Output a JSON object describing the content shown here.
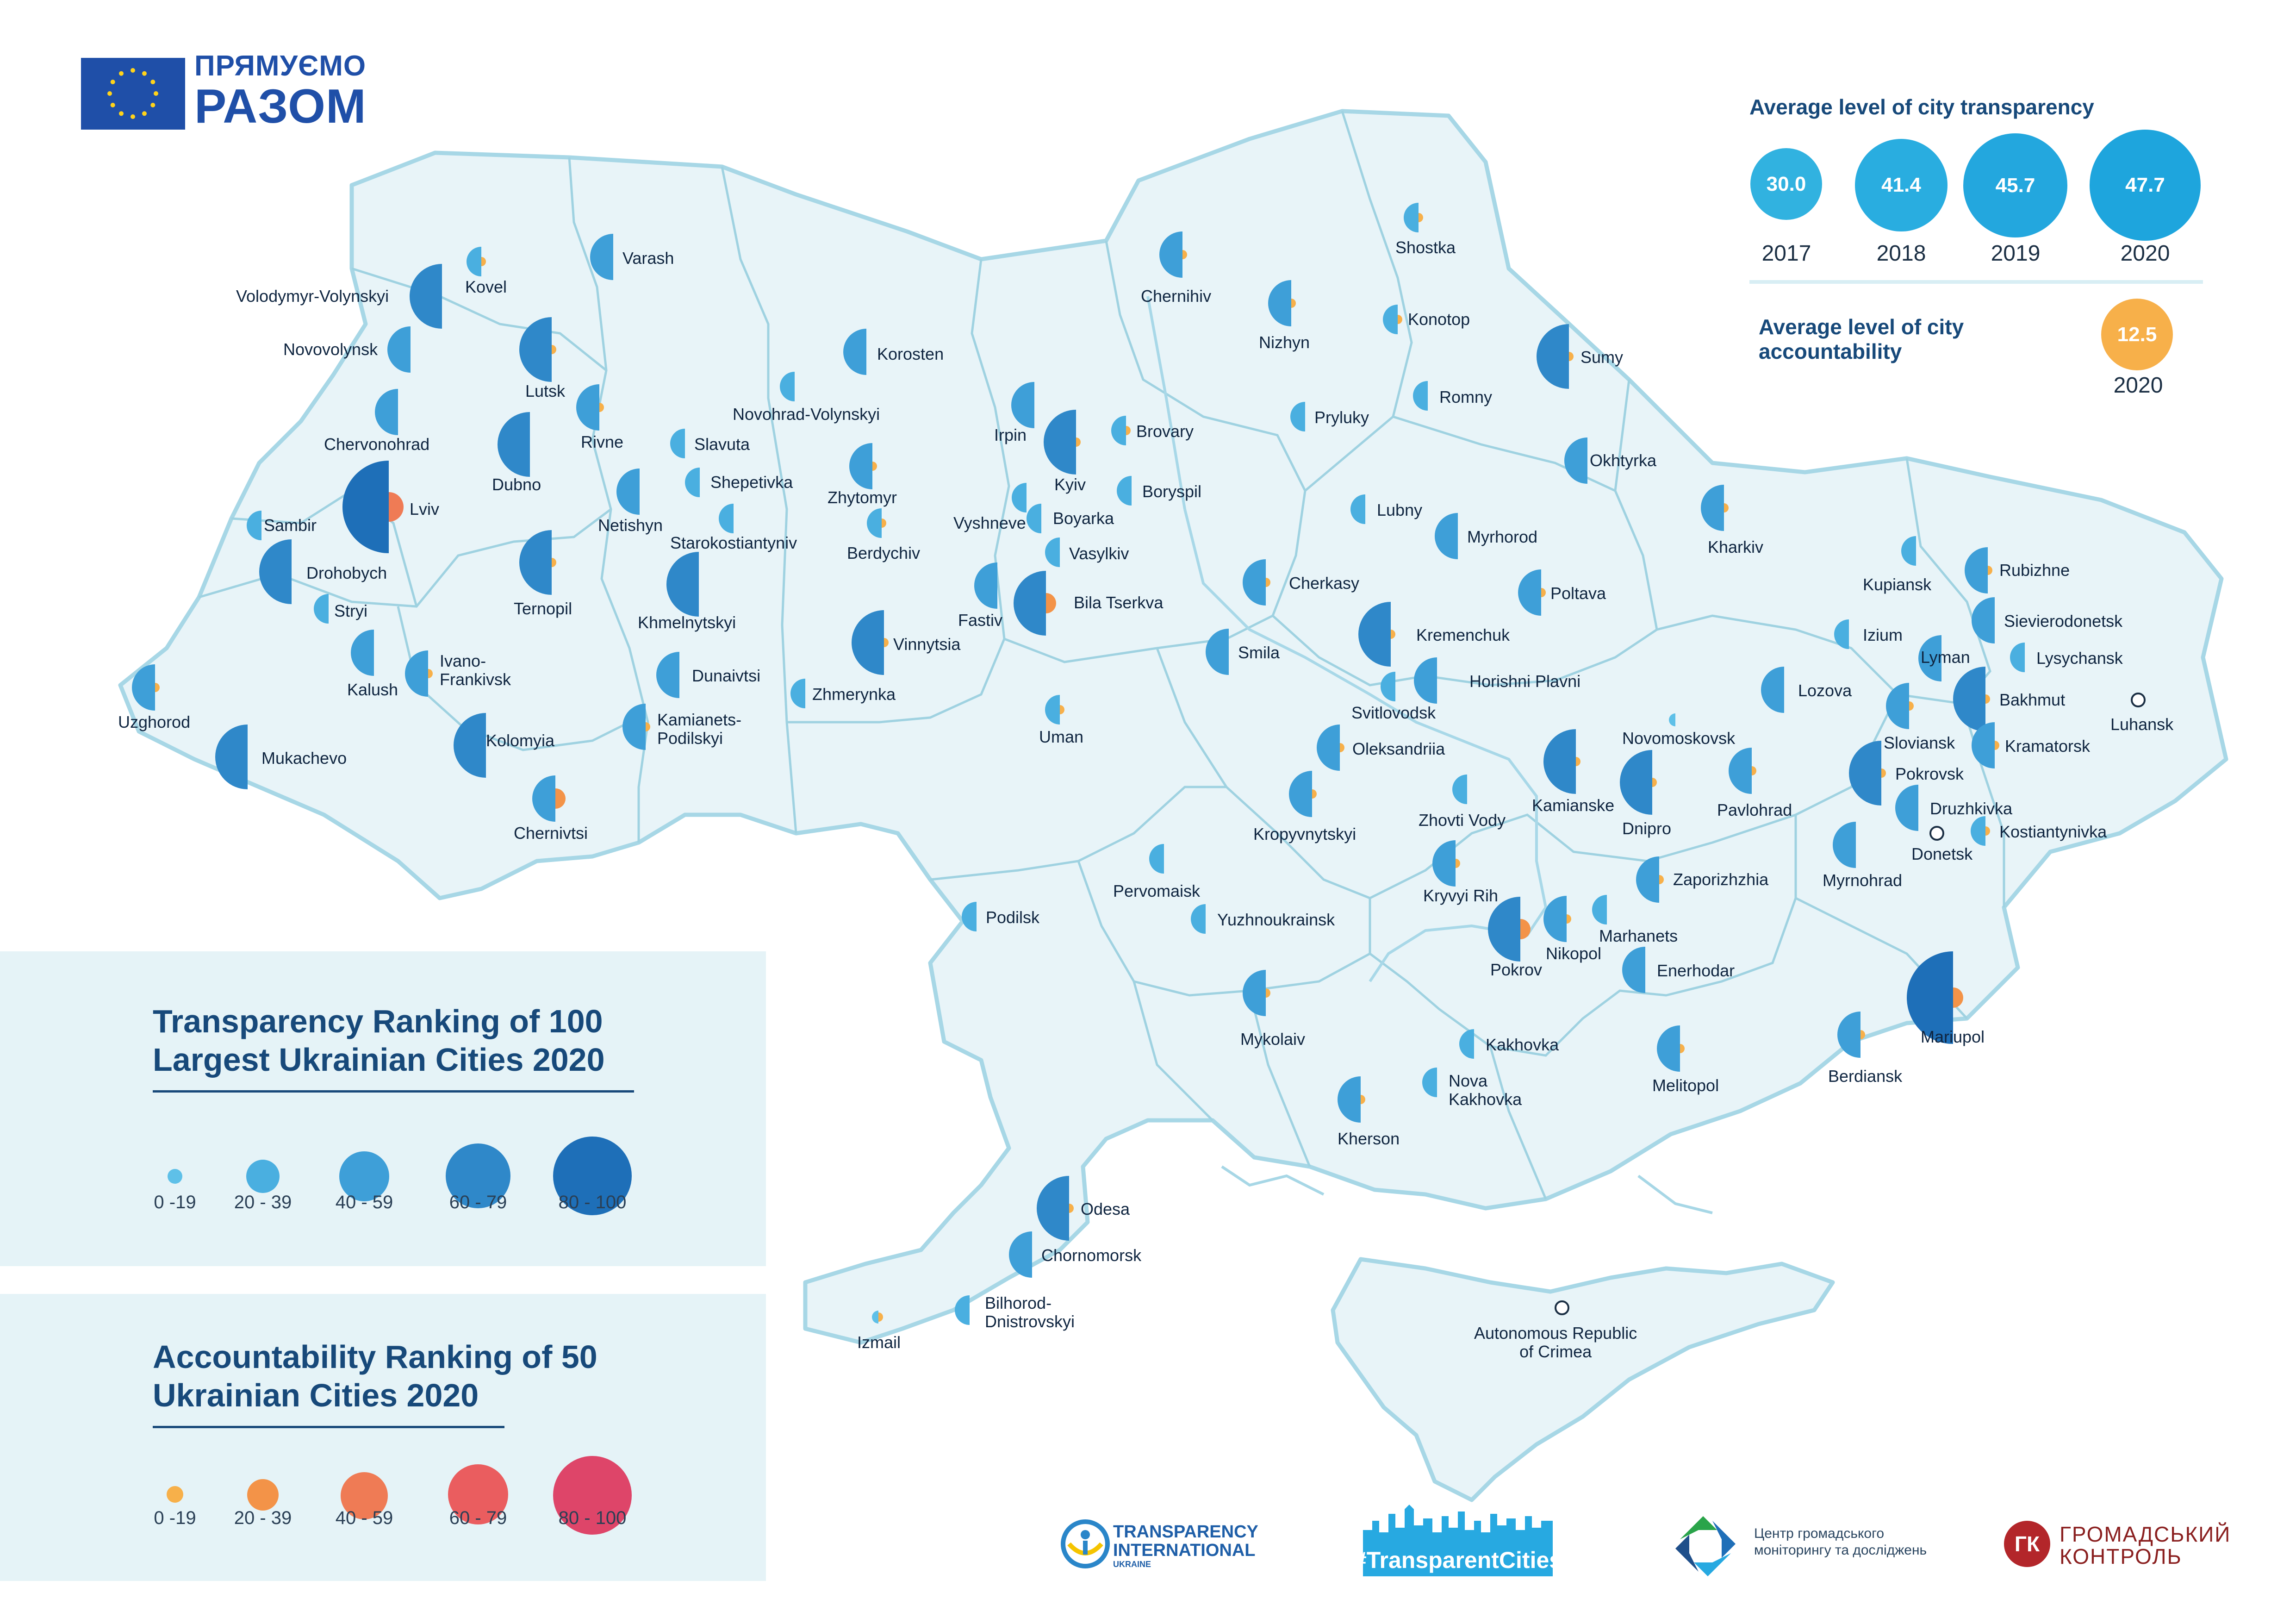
{
  "branding": {
    "partner_line1": "ПРЯМУЄМО",
    "partner_line2": "РАЗОМ"
  },
  "colors": {
    "transparency_scale": [
      "#5ec0e8",
      "#4aafe0",
      "#3e9fd8",
      "#2f88c9",
      "#1e6fb8"
    ],
    "accountability_scale": [
      "#f7b04a",
      "#f39348",
      "#ef7b55",
      "#ea5d5f",
      "#de4569"
    ],
    "map_fill": "#e8f4f8",
    "map_border": "#a7d7e6",
    "region_line": "#9fd2e1"
  },
  "stats": {
    "transparency_title": "Average level of city transparency",
    "transparency_values": [
      {
        "value": "30.0",
        "year": "2017"
      },
      {
        "value": "41.4",
        "year": "2018"
      },
      {
        "value": "45.7",
        "year": "2019"
      },
      {
        "value": "47.7",
        "year": "2020"
      }
    ],
    "accountability_title_line1": "Average level of city",
    "accountability_title_line2": "accountability",
    "accountability_value": "12.5",
    "accountability_year": "2020"
  },
  "legend_transparency": {
    "title": "Transparency Ranking of 100\nLargest Ukrainian Cities 2020",
    "ranges": [
      "0 -19",
      "20 - 39",
      "40 - 59",
      "60 - 79",
      "80 - 100"
    ]
  },
  "legend_accountability": {
    "title": "Accountability Ranking of 50\nUkrainian Cities 2020",
    "ranges": [
      "0 -19",
      "20 - 39",
      "40 - 59",
      "60 - 79",
      "80 - 100"
    ]
  },
  "logos": {
    "ti_line1": "TRANSPARENCY",
    "ti_line2": "INTERNATIONAL",
    "ti_line3": "UKRAINE",
    "transparent_cities": "#TransparentCities",
    "cgm_line1": "Центр громадського",
    "cgm_line2": "моніторингу та досліджень",
    "gk_mark": "ГК",
    "gk_line1": "ГРОМАДСЬКИЙ",
    "gk_line2": "КОНТРОЛЬ"
  },
  "cities": [
    {
      "name": "Kovel",
      "t": 1,
      "a": 0
    },
    {
      "name": "Varash",
      "t": 2,
      "a": null
    },
    {
      "name": "Volodymyr-Volynskyi",
      "t": 3,
      "a": null
    },
    {
      "name": "Novovolynsk",
      "t": 2,
      "a": null
    },
    {
      "name": "Lutsk",
      "t": 3,
      "a": 0
    },
    {
      "name": "Chervonohrad",
      "t": 2,
      "a": null
    },
    {
      "name": "Rivne",
      "t": 2,
      "a": 0
    },
    {
      "name": "Dubno",
      "t": 3,
      "a": null
    },
    {
      "name": "Lviv",
      "t": 4,
      "a": 2
    },
    {
      "name": "Sambir",
      "t": 1,
      "a": null
    },
    {
      "name": "Drohobych",
      "t": 3,
      "a": null
    },
    {
      "name": "Stryi",
      "t": 1,
      "a": null
    },
    {
      "name": "Kalush",
      "t": 2,
      "a": null
    },
    {
      "name": "Ivano-\nFrankivsk",
      "t": 2,
      "a": 0
    },
    {
      "name": "Uzghorod",
      "t": 2,
      "a": 0
    },
    {
      "name": "Mukachevo",
      "t": 3,
      "a": null
    },
    {
      "name": "Kolomyia",
      "t": 3,
      "a": null
    },
    {
      "name": "Chernivtsi",
      "t": 2,
      "a": 1
    },
    {
      "name": "Ternopil",
      "t": 3,
      "a": 0
    },
    {
      "name": "Netishyn",
      "t": 2,
      "a": null
    },
    {
      "name": "Slavuta",
      "t": 1,
      "a": null
    },
    {
      "name": "Shepetivka",
      "t": 1,
      "a": null
    },
    {
      "name": "Starokostiantyniv",
      "t": 1,
      "a": null
    },
    {
      "name": "Khmelnytskyi",
      "t": 3,
      "a": null
    },
    {
      "name": "Dunaivtsi",
      "t": 2,
      "a": null
    },
    {
      "name": "Kamianets-\nPodilskyi",
      "t": 2,
      "a": 0
    },
    {
      "name": "Novohrad-Volynskyi",
      "t": 1,
      "a": null
    },
    {
      "name": "Korosten",
      "t": 2,
      "a": null
    },
    {
      "name": "Zhytomyr",
      "t": 2,
      "a": 0
    },
    {
      "name": "Berdychiv",
      "t": 1,
      "a": 0
    },
    {
      "name": "Vinnytsia",
      "t": 3,
      "a": 0
    },
    {
      "name": "Zhmerynka",
      "t": 1,
      "a": null
    },
    {
      "name": "Irpin",
      "t": 2,
      "a": null
    },
    {
      "name": "Kyiv",
      "t": 3,
      "a": 0
    },
    {
      "name": "Brovary",
      "t": 1,
      "a": 0
    },
    {
      "name": "Boryspil",
      "t": 1,
      "a": null
    },
    {
      "name": "Vyshneve",
      "t": 1,
      "a": null
    },
    {
      "name": "Boyarka",
      "t": 1,
      "a": null
    },
    {
      "name": "Vasylkiv",
      "t": 1,
      "a": null
    },
    {
      "name": "Fastiv",
      "t": 2,
      "a": null
    },
    {
      "name": "Bila Tserkva",
      "t": 3,
      "a": 1
    },
    {
      "name": "Uman",
      "t": 1,
      "a": 0
    },
    {
      "name": "Chernihiv",
      "t": 2,
      "a": 0
    },
    {
      "name": "Nizhyn",
      "t": 2,
      "a": 0
    },
    {
      "name": "Shostka",
      "t": 1,
      "a": 0
    },
    {
      "name": "Konotop",
      "t": 1,
      "a": 0
    },
    {
      "name": "Sumy",
      "t": 3,
      "a": 0
    },
    {
      "name": "Romny",
      "t": 1,
      "a": null
    },
    {
      "name": "Pryluky",
      "t": 1,
      "a": null
    },
    {
      "name": "Okhtyrka",
      "t": 2,
      "a": null
    },
    {
      "name": "Lubny",
      "t": 1,
      "a": null
    },
    {
      "name": "Myrhorod",
      "t": 2,
      "a": null
    },
    {
      "name": "Poltava",
      "t": 2,
      "a": 0
    },
    {
      "name": "Cherkasy",
      "t": 2,
      "a": 0
    },
    {
      "name": "Smila",
      "t": 2,
      "a": null
    },
    {
      "name": "Kremenchuk",
      "t": 3,
      "a": 0
    },
    {
      "name": "Svitlovodsk",
      "t": 1,
      "a": null
    },
    {
      "name": "Horishni Plavni",
      "t": 2,
      "a": null
    },
    {
      "name": "Oleksandriia",
      "t": 2,
      "a": 0
    },
    {
      "name": "Kropyvnytskyi",
      "t": 2,
      "a": 0
    },
    {
      "name": "Kharkiv",
      "t": 2,
      "a": 0
    },
    {
      "name": "Kupiansk",
      "t": 1,
      "a": null
    },
    {
      "name": "Izium",
      "t": 1,
      "a": null
    },
    {
      "name": "Lozova",
      "t": 2,
      "a": null
    },
    {
      "name": "Novomoskovsk",
      "t": 0,
      "a": null
    },
    {
      "name": "Kamianske",
      "t": 3,
      "a": 0
    },
    {
      "name": "Dnipro",
      "t": 3,
      "a": 0
    },
    {
      "name": "Pavlohrad",
      "t": 2,
      "a": 0
    },
    {
      "name": "Zhovti Vody",
      "t": 1,
      "a": null
    },
    {
      "name": "Kryvyi Rih",
      "t": 2,
      "a": 0
    },
    {
      "name": "Pokrov",
      "t": 3,
      "a": 1
    },
    {
      "name": "Nikopol",
      "t": 2,
      "a": 0
    },
    {
      "name": "Marhanets",
      "t": 1,
      "a": null
    },
    {
      "name": "Zaporizhzhia",
      "t": 2,
      "a": 0
    },
    {
      "name": "Enerhodar",
      "t": 2,
      "a": null
    },
    {
      "name": "Melitopol",
      "t": 2,
      "a": 0
    },
    {
      "name": "Berdiansk",
      "t": 2,
      "a": 0
    },
    {
      "name": "Mariupol",
      "t": 4,
      "a": 1
    },
    {
      "name": "Rubizhne",
      "t": 2,
      "a": 0
    },
    {
      "name": "Sievierodonetsk",
      "t": 2,
      "a": null
    },
    {
      "name": "Lysychansk",
      "t": 1,
      "a": null
    },
    {
      "name": "Lyman",
      "t": 2,
      "a": null
    },
    {
      "name": "Bakhmut",
      "t": 3,
      "a": 0
    },
    {
      "name": "Sloviansk",
      "t": 2,
      "a": 0
    },
    {
      "name": "Kramatorsk",
      "t": 2,
      "a": 0
    },
    {
      "name": "Luhansk",
      "t": null,
      "a": null
    },
    {
      "name": "Pokrovsk",
      "t": 3,
      "a": 0
    },
    {
      "name": "Druzhkivka",
      "t": 2,
      "a": null
    },
    {
      "name": "Donetsk",
      "t": null,
      "a": null
    },
    {
      "name": "Kostiantynivka",
      "t": 1,
      "a": 0
    },
    {
      "name": "Myrnohrad",
      "t": 2,
      "a": null
    },
    {
      "name": "Pervomaisk",
      "t": 1,
      "a": null
    },
    {
      "name": "Yuzhnoukrainsk",
      "t": 1,
      "a": null
    },
    {
      "name": "Podilsk",
      "t": 1,
      "a": null
    },
    {
      "name": "Mykolaiv",
      "t": 2,
      "a": 0
    },
    {
      "name": "Kakhovka",
      "t": 1,
      "a": null
    },
    {
      "name": "Nova\nKakhovka",
      "t": 1,
      "a": null
    },
    {
      "name": "Kherson",
      "t": 2,
      "a": 0
    },
    {
      "name": "Odesa",
      "t": 3,
      "a": 0
    },
    {
      "name": "Chornomorsk",
      "t": 2,
      "a": null
    },
    {
      "name": "Bilhorod-\nDnistrovskyi",
      "t": 1,
      "a": null
    },
    {
      "name": "Izmail",
      "t": 0,
      "a": 0
    },
    {
      "name": "Autonomous Republic\nof Crimea",
      "t": null,
      "a": null
    }
  ]
}
